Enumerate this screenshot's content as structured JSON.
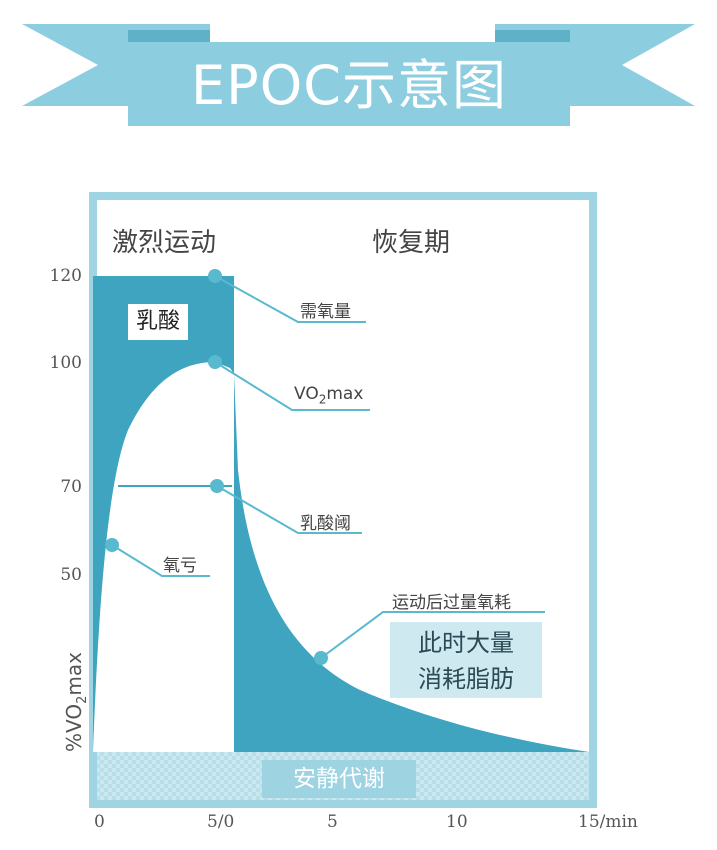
{
  "title": "EPOC示意图",
  "phases": {
    "exercise": "激烈运动",
    "recovery": "恢复期"
  },
  "y_axis": {
    "label": "%VO2max",
    "label_main": "%VO",
    "label_sub": "2",
    "label_end": "max",
    "ticks": [
      "120",
      "100",
      "70",
      "50"
    ]
  },
  "x_axis": {
    "ticks": [
      "0",
      "5/0",
      "5",
      "10",
      "15/min"
    ]
  },
  "labels": {
    "lactic_acid": "乳酸",
    "oxygen_demand": "需氧量",
    "vo2max_main": "VO",
    "vo2max_sub": "2",
    "vo2max_end": "max",
    "lactate_threshold": "乳酸阈",
    "oxygen_deficit": "氧亏",
    "epoc": "运动后过量氧耗",
    "fat_line1": "此时大量",
    "fat_line2": "消耗脂肪",
    "resting_metabolism": "安静代谢"
  },
  "colors": {
    "banner": "#8ccde0",
    "banner_dark": "#5fb1c8",
    "frame": "#9fd4e3",
    "fill": "#3ea4c0",
    "dot": "#58b9cf",
    "resting_band": "#b6dfea"
  }
}
